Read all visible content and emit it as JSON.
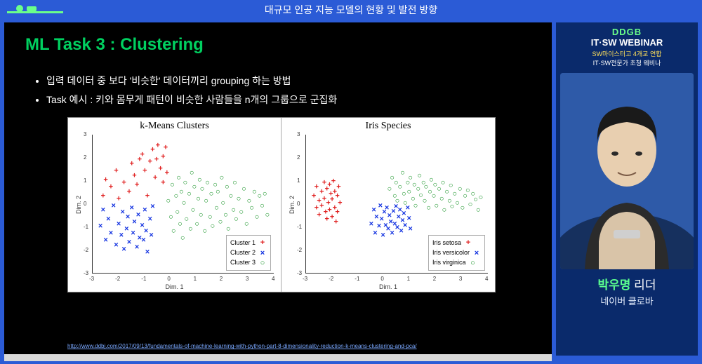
{
  "topbar": {
    "title": "대규모 인공 지능 모델의 현황 및 발전 방향"
  },
  "slide": {
    "title": "ML Task 3 : Clustering",
    "title_color": "#00d060",
    "bullets": [
      "입력 데이터 중 보다 '비슷한' 데이터끼리 grouping 하는 방법",
      "Task 예시 : 키와 몸무게 패턴이 비슷한 사람들을 n개의 그룹으로 군집화"
    ],
    "citation": "http://www.ddbj.com/2017/09/13/fundamentals-of-machine-learning-with-python-part-8-dimensionality-reduction-k-means-clustering-and-pca/"
  },
  "charts": {
    "background_color": "#ffffff",
    "axis_color": "#333333",
    "xlabel": "Dim. 1",
    "ylabel": "Dim. 2",
    "xlim": [
      -3.0,
      4.0
    ],
    "ylim": [
      -3.0,
      3.0
    ],
    "xticks": [
      -3,
      -2,
      -1,
      0,
      1,
      2,
      3,
      4
    ],
    "yticks": [
      -3,
      -2,
      -1,
      0,
      1,
      2,
      3
    ],
    "marker_fontsize": 11,
    "panels": [
      {
        "title": "k-Means Clusters",
        "legend": [
          {
            "label": "Cluster 1",
            "color": "#e02020",
            "marker": "+"
          },
          {
            "label": "Cluster 2",
            "color": "#1030e0",
            "marker": "×"
          },
          {
            "label": "Cluster 3",
            "color": "#109020",
            "marker": "○"
          }
        ],
        "series": [
          {
            "color": "#e02020",
            "marker": "+",
            "points": [
              [
                -2.5,
                1.0
              ],
              [
                -2.6,
                0.3
              ],
              [
                -2.3,
                0.7
              ],
              [
                -2.1,
                1.4
              ],
              [
                -2.0,
                0.2
              ],
              [
                -1.8,
                0.9
              ],
              [
                -1.5,
                1.7
              ],
              [
                -1.6,
                0.5
              ],
              [
                -1.4,
                1.2
              ],
              [
                -1.2,
                1.9
              ],
              [
                -1.3,
                0.8
              ],
              [
                -1.1,
                2.1
              ],
              [
                -1.0,
                1.4
              ],
              [
                -0.9,
                0.3
              ],
              [
                -0.8,
                1.8
              ],
              [
                -0.7,
                2.3
              ],
              [
                -0.6,
                1.1
              ],
              [
                -0.55,
                1.9
              ],
              [
                -0.5,
                2.5
              ],
              [
                -0.4,
                1.5
              ],
              [
                -0.3,
                2.0
              ],
              [
                -0.3,
                0.9
              ],
              [
                -0.2,
                2.4
              ],
              [
                -0.15,
                1.3
              ]
            ]
          },
          {
            "color": "#1030e0",
            "marker": "×",
            "points": [
              [
                -2.7,
                -1.0
              ],
              [
                -2.6,
                -0.3
              ],
              [
                -2.5,
                -1.6
              ],
              [
                -2.4,
                -0.7
              ],
              [
                -2.3,
                -1.3
              ],
              [
                -2.2,
                -0.1
              ],
              [
                -2.1,
                -1.8
              ],
              [
                -2.0,
                -0.9
              ],
              [
                -1.9,
                -1.4
              ],
              [
                -1.85,
                -0.4
              ],
              [
                -1.8,
                -2.0
              ],
              [
                -1.7,
                -1.1
              ],
              [
                -1.65,
                -0.6
              ],
              [
                -1.6,
                -1.7
              ],
              [
                -1.5,
                -0.2
              ],
              [
                -1.45,
                -1.3
              ],
              [
                -1.4,
                -0.8
              ],
              [
                -1.3,
                -1.9
              ],
              [
                -1.25,
                -0.5
              ],
              [
                -1.2,
                -1.5
              ],
              [
                -1.1,
                -0.95
              ],
              [
                -1.05,
                -1.6
              ],
              [
                -1.0,
                -0.3
              ],
              [
                -0.95,
                -1.2
              ],
              [
                -0.9,
                -2.1
              ],
              [
                -0.8,
                -0.7
              ],
              [
                -0.75,
                -1.4
              ],
              [
                -0.7,
                -0.15
              ]
            ]
          },
          {
            "color": "#109020",
            "marker": "○",
            "points": [
              [
                -0.1,
                0.1
              ],
              [
                0.0,
                -0.6
              ],
              [
                0.05,
                0.8
              ],
              [
                0.1,
                -1.2
              ],
              [
                0.2,
                0.3
              ],
              [
                0.25,
                -0.4
              ],
              [
                0.3,
                1.1
              ],
              [
                0.35,
                -0.9
              ],
              [
                0.4,
                0.5
              ],
              [
                0.45,
                -1.5
              ],
              [
                0.5,
                0.0
              ],
              [
                0.55,
                0.9
              ],
              [
                0.6,
                -0.7
              ],
              [
                0.7,
                0.4
              ],
              [
                0.75,
                -1.1
              ],
              [
                0.8,
                1.3
              ],
              [
                0.85,
                -0.3
              ],
              [
                0.9,
                0.7
              ],
              [
                1.0,
                -0.9
              ],
              [
                1.05,
                0.2
              ],
              [
                1.1,
                1.0
              ],
              [
                1.15,
                -0.5
              ],
              [
                1.2,
                0.6
              ],
              [
                1.3,
                -1.2
              ],
              [
                1.35,
                0.1
              ],
              [
                1.4,
                0.9
              ],
              [
                1.5,
                -0.6
              ],
              [
                1.55,
                0.4
              ],
              [
                1.6,
                -1.0
              ],
              [
                1.7,
                0.8
              ],
              [
                1.75,
                -0.2
              ],
              [
                1.8,
                0.5
              ],
              [
                1.9,
                -0.8
              ],
              [
                1.95,
                1.1
              ],
              [
                2.0,
                0.0
              ],
              [
                2.1,
                -0.5
              ],
              [
                2.15,
                0.7
              ],
              [
                2.2,
                -1.1
              ],
              [
                2.3,
                0.3
              ],
              [
                2.4,
                -0.3
              ],
              [
                2.45,
                0.9
              ],
              [
                2.5,
                -0.7
              ],
              [
                2.6,
                0.2
              ],
              [
                2.7,
                -0.4
              ],
              [
                2.8,
                0.6
              ],
              [
                2.9,
                -0.9
              ],
              [
                3.0,
                0.1
              ],
              [
                3.1,
                -0.2
              ],
              [
                3.2,
                0.5
              ],
              [
                3.3,
                -0.6
              ],
              [
                3.4,
                0.3
              ],
              [
                3.5,
                -0.1
              ],
              [
                3.6,
                0.4
              ],
              [
                3.7,
                -0.5
              ]
            ]
          }
        ]
      },
      {
        "title": "Iris Species",
        "legend": [
          {
            "label": "Iris setosa",
            "color": "#e02020",
            "marker": "+"
          },
          {
            "label": "Iris versicolor",
            "color": "#1030e0",
            "marker": "×"
          },
          {
            "label": "Iris virginica",
            "color": "#109020",
            "marker": "○"
          }
        ],
        "series": [
          {
            "color": "#e02020",
            "marker": "+",
            "points": [
              [
                -2.7,
                0.3
              ],
              [
                -2.6,
                -0.2
              ],
              [
                -2.6,
                0.7
              ],
              [
                -2.5,
                0.1
              ],
              [
                -2.5,
                -0.5
              ],
              [
                -2.4,
                0.5
              ],
              [
                -2.4,
                -0.1
              ],
              [
                -2.3,
                0.9
              ],
              [
                -2.3,
                0.2
              ],
              [
                -2.25,
                -0.4
              ],
              [
                -2.2,
                0.6
              ],
              [
                -2.2,
                -0.7
              ],
              [
                -2.15,
                0.0
              ],
              [
                -2.1,
                0.8
              ],
              [
                -2.1,
                -0.3
              ],
              [
                -2.05,
                0.4
              ],
              [
                -2.0,
                -0.6
              ],
              [
                -2.0,
                0.15
              ],
              [
                -1.95,
                0.95
              ],
              [
                -1.9,
                -0.2
              ],
              [
                -1.9,
                0.5
              ],
              [
                -1.85,
                -0.8
              ],
              [
                -1.8,
                0.3
              ],
              [
                -1.8,
                -0.4
              ],
              [
                -1.75,
                0.7
              ],
              [
                -1.7,
                0.0
              ]
            ]
          },
          {
            "color": "#1030e0",
            "marker": "×",
            "points": [
              [
                -0.5,
                -0.9
              ],
              [
                -0.4,
                -0.3
              ],
              [
                -0.35,
                -1.3
              ],
              [
                -0.3,
                -0.6
              ],
              [
                -0.2,
                -1.0
              ],
              [
                -0.15,
                -0.1
              ],
              [
                -0.1,
                -0.7
              ],
              [
                -0.05,
                -1.4
              ],
              [
                0.0,
                -0.4
              ],
              [
                0.05,
                -0.95
              ],
              [
                0.1,
                -0.2
              ],
              [
                0.15,
                -1.1
              ],
              [
                0.2,
                -0.55
              ],
              [
                0.25,
                -0.8
              ],
              [
                0.3,
                -1.3
              ],
              [
                0.35,
                -0.35
              ],
              [
                0.4,
                -0.9
              ],
              [
                0.45,
                -0.15
              ],
              [
                0.5,
                -1.05
              ],
              [
                0.55,
                -0.6
              ],
              [
                0.6,
                -0.3
              ],
              [
                0.65,
                -1.2
              ],
              [
                0.7,
                -0.75
              ],
              [
                0.75,
                -0.45
              ],
              [
                0.8,
                -0.95
              ],
              [
                0.9,
                -0.2
              ],
              [
                0.95,
                -0.65
              ],
              [
                1.0,
                -1.1
              ]
            ]
          },
          {
            "color": "#109020",
            "marker": "○",
            "points": [
              [
                0.2,
                0.6
              ],
              [
                0.3,
                1.1
              ],
              [
                0.4,
                0.3
              ],
              [
                0.45,
                0.9
              ],
              [
                0.5,
                0.1
              ],
              [
                0.6,
                0.7
              ],
              [
                0.7,
                1.3
              ],
              [
                0.75,
                0.4
              ],
              [
                0.8,
                0.0
              ],
              [
                0.9,
                0.9
              ],
              [
                0.95,
                0.5
              ],
              [
                1.0,
                1.1
              ],
              [
                1.1,
                0.2
              ],
              [
                1.15,
                0.8
              ],
              [
                1.2,
                -0.1
              ],
              [
                1.3,
                0.6
              ],
              [
                1.35,
                1.2
              ],
              [
                1.4,
                0.35
              ],
              [
                1.5,
                0.9
              ],
              [
                1.55,
                0.1
              ],
              [
                1.6,
                0.7
              ],
              [
                1.7,
                -0.2
              ],
              [
                1.75,
                0.5
              ],
              [
                1.8,
                1.0
              ],
              [
                1.9,
                0.3
              ],
              [
                1.95,
                0.8
              ],
              [
                2.0,
                -0.1
              ],
              [
                2.1,
                0.6
              ],
              [
                2.2,
                0.2
              ],
              [
                2.25,
                0.9
              ],
              [
                2.3,
                -0.3
              ],
              [
                2.4,
                0.5
              ],
              [
                2.5,
                0.1
              ],
              [
                2.55,
                0.75
              ],
              [
                2.6,
                -0.15
              ],
              [
                2.7,
                0.4
              ],
              [
                2.8,
                0.0
              ],
              [
                2.9,
                0.6
              ],
              [
                3.0,
                -0.2
              ],
              [
                3.1,
                0.3
              ],
              [
                3.2,
                0.55
              ],
              [
                3.3,
                -0.05
              ],
              [
                3.4,
                0.4
              ],
              [
                3.5,
                0.15
              ],
              [
                3.6,
                -0.3
              ],
              [
                3.7,
                0.25
              ]
            ]
          }
        ]
      }
    ]
  },
  "side": {
    "brand1": "DDGB",
    "brand2": "IT·SW WEBINAR",
    "tag1": "SW마이스터고 4개교 연합",
    "tag2": "IT·SW전문가 초청 웨비나",
    "presenter_name": "박우명",
    "presenter_role": " 리더",
    "presenter_org": "네이버 클로바"
  }
}
